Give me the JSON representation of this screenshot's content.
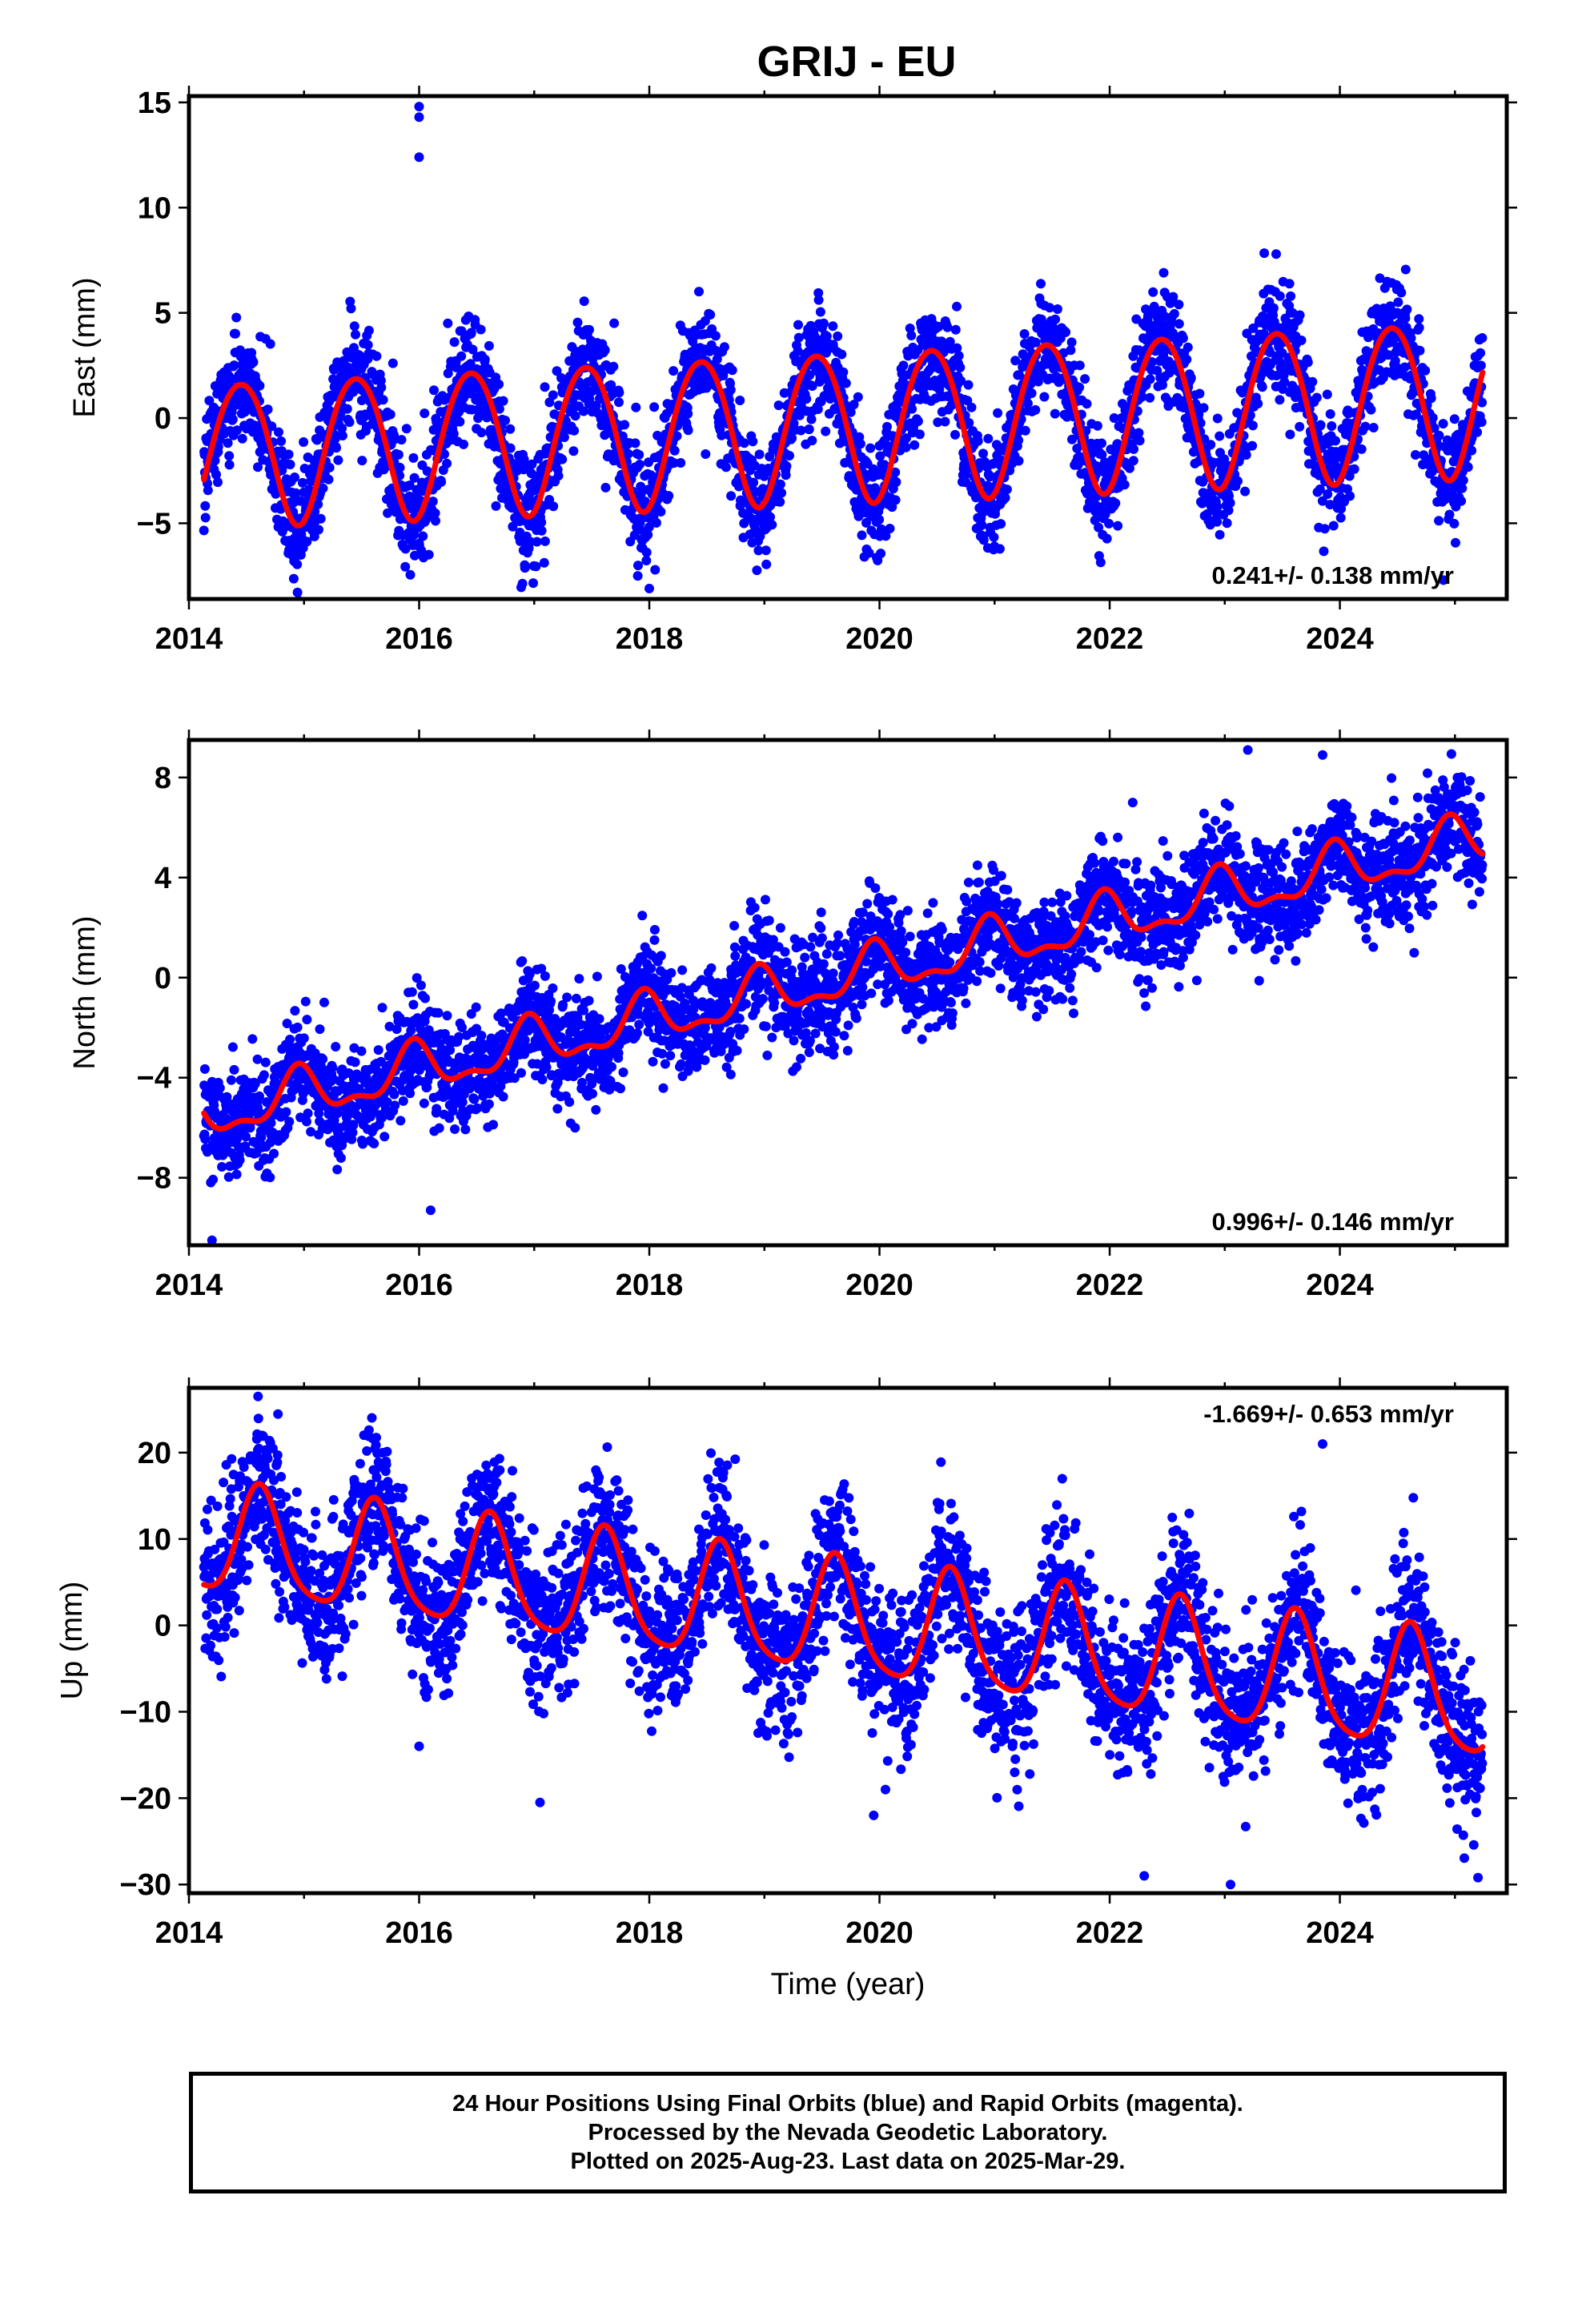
{
  "title": "GRIJ - EU",
  "colors": {
    "data": "#0000ff",
    "fit": "#ff0000",
    "frame": "#000000"
  },
  "chart_data": [
    {
      "type": "scatter",
      "xlabel": "",
      "ylabel": "East (mm)",
      "xlim": [
        2014.0,
        2025.45
      ],
      "ylim": [
        -8.6,
        15.3
      ],
      "xticks": [
        2014,
        2016,
        2018,
        2020,
        2022,
        2024
      ],
      "xtick_labels": [
        "2014",
        "2016",
        "2018",
        "2020",
        "2022",
        "2024"
      ],
      "yticks": [
        -5,
        0,
        5,
        10,
        15
      ],
      "ytick_labels": [
        "−5",
        "0",
        "5",
        "10",
        "15"
      ],
      "rate_label": "0.241+/- 0.138 mm/yr",
      "data_start": 2014.13,
      "data_end": 2025.24,
      "series": [
        {
          "role": "daily positions (final orbits)",
          "color": "#0000ff",
          "scatter_sd": 1.3,
          "outliers": [
            [
              2016.0,
              14.8
            ],
            [
              2016.0,
              14.3
            ],
            [
              2016.0,
              12.4
            ],
            [
              2018.0,
              -8.1
            ],
            [
              2017.9,
              -7.5
            ]
          ]
        },
        {
          "role": "model fit",
          "color": "#ff0000",
          "model": {
            "offset": -0.3,
            "slope": 0.241,
            "ref_year": 2019.7,
            "annual_amp_start": 3.4,
            "annual_amp_end": 3.7,
            "annual_peak": 0.45,
            "semi_amp": 0.25,
            "semi_phase": 0.2
          }
        }
      ]
    },
    {
      "type": "scatter",
      "xlabel": "",
      "ylabel": "North (mm)",
      "xlim": [
        2014.0,
        2025.45
      ],
      "ylim": [
        -10.7,
        9.5
      ],
      "xticks": [
        2014,
        2016,
        2018,
        2020,
        2022,
        2024
      ],
      "xtick_labels": [
        "2014",
        "2016",
        "2018",
        "2020",
        "2022",
        "2024"
      ],
      "yticks": [
        -8,
        -4,
        0,
        4,
        8
      ],
      "ytick_labels": [
        "−8",
        "−4",
        "0",
        "4",
        "8"
      ],
      "rate_label": "0.996+/- 0.146 mm/yr",
      "data_start": 2014.13,
      "data_end": 2025.24,
      "series": [
        {
          "role": "daily positions (final orbits)",
          "color": "#0000ff",
          "scatter_sd": 1.05,
          "outliers": [
            [
              2023.2,
              9.1
            ],
            [
              2023.85,
              8.9
            ],
            [
              2014.2,
              -10.5
            ],
            [
              2016.1,
              -9.3
            ],
            [
              2022.2,
              7.0
            ]
          ]
        },
        {
          "role": "model fit",
          "color": "#ff0000",
          "model": {
            "offset": 0.0,
            "slope": 0.996,
            "ref_year": 2019.7,
            "annual_amp_start": 0.9,
            "annual_amp_end": 0.9,
            "annual_peak": 0.95,
            "semi_amp": 0.4,
            "semi_phase": 0.45
          }
        }
      ]
    },
    {
      "type": "scatter",
      "xlabel": "Time (year)",
      "ylabel": "Up (mm)",
      "xlim": [
        2014.0,
        2025.45
      ],
      "ylim": [
        -31.0,
        27.5
      ],
      "xticks": [
        2014,
        2016,
        2018,
        2020,
        2022,
        2024
      ],
      "xtick_labels": [
        "2014",
        "2016",
        "2018",
        "2020",
        "2022",
        "2024"
      ],
      "yticks": [
        -30,
        -20,
        -10,
        0,
        10,
        20
      ],
      "ytick_labels": [
        "−30",
        "−20",
        "−10",
        "0",
        "10",
        "20"
      ],
      "rate_label": "-1.669+/- 0.653 mm/yr",
      "data_start": 2014.13,
      "data_end": 2025.24,
      "series": [
        {
          "role": "daily positions (final orbits)",
          "color": "#0000ff",
          "scatter_sd": 4.3,
          "outliers": [
            [
              2014.6,
              26.5
            ],
            [
              2023.85,
              21.0
            ],
            [
              2019.95,
              -22.0
            ],
            [
              2022.3,
              -29.0
            ],
            [
              2023.05,
              -30.0
            ],
            [
              2025.2,
              -29.2
            ],
            [
              2017.05,
              -20.5
            ],
            [
              2016.0,
              -14.0
            ]
          ]
        },
        {
          "role": "model fit",
          "color": "#ff0000",
          "model": {
            "offset": 0.5,
            "slope": -1.669,
            "ref_year": 2019.7,
            "annual_amp_start": 6.2,
            "annual_amp_end": 7.0,
            "annual_peak": 0.62,
            "semi_amp": 1.2,
            "semi_phase": 0.1
          }
        }
      ]
    }
  ],
  "footer": {
    "line1": "24 Hour Positions Using Final Orbits (blue) and Rapid Orbits (magenta).",
    "line2": "Processed by the Nevada Geodetic Laboratory.",
    "line3": "Plotted on 2025-Aug-23. Last data on 2025-Mar-29."
  }
}
